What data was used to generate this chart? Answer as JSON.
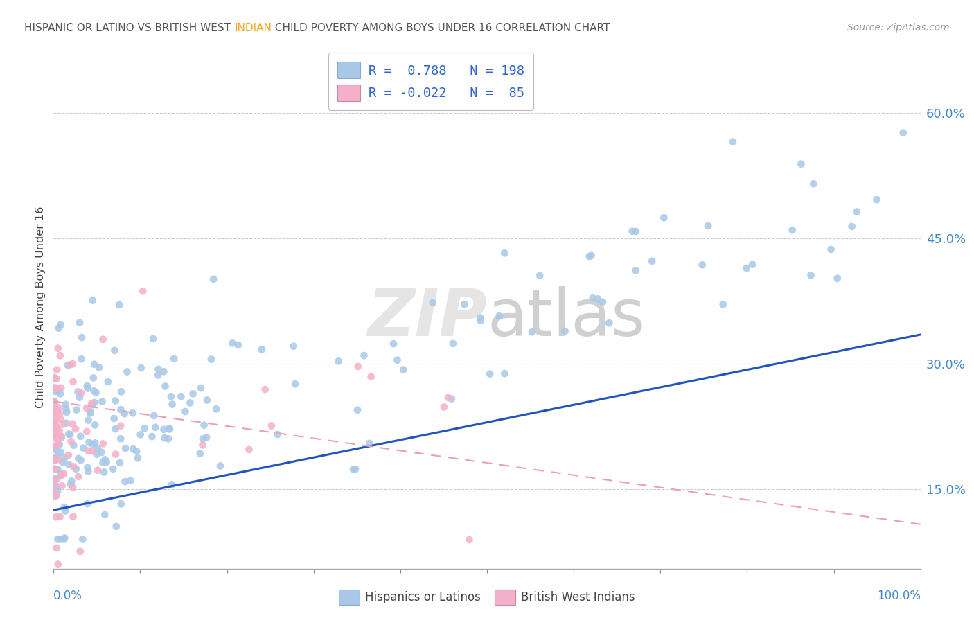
{
  "title_parts": [
    {
      "text": "HISPANIC OR LATINO VS BRITISH WEST ",
      "color": "#555555"
    },
    {
      "text": "INDIAN",
      "color": "#f5a623"
    },
    {
      "text": " CHILD POVERTY AMONG BOYS UNDER 16 CORRELATION CHART",
      "color": "#555555"
    }
  ],
  "source": "Source: ZipAtlas.com",
  "ylabel": "Child Poverty Among Boys Under 16",
  "ytick_vals": [
    0.15,
    0.3,
    0.45,
    0.6
  ],
  "ytick_labels": [
    "15.0%",
    "30.0%",
    "45.0%",
    "60.0%"
  ],
  "watermark": "ZIPatlas",
  "blue_color": "#a8c8e8",
  "pink_color": "#f4b0c8",
  "blue_line_color": "#2255bb",
  "pink_line_color": "#e8a0b8",
  "R_blue": 0.788,
  "R_pink": -0.022,
  "N_blue": 198,
  "N_pink": 85,
  "xmin": 0.0,
  "xmax": 1.0,
  "ymin": 0.055,
  "ymax": 0.68,
  "blue_trend_y0": 0.125,
  "blue_trend_y1": 0.335,
  "pink_trend_y0": 0.255,
  "pink_trend_y1": 0.108,
  "legend_R_color": "#3366cc",
  "legend_N_color": "#3366cc"
}
